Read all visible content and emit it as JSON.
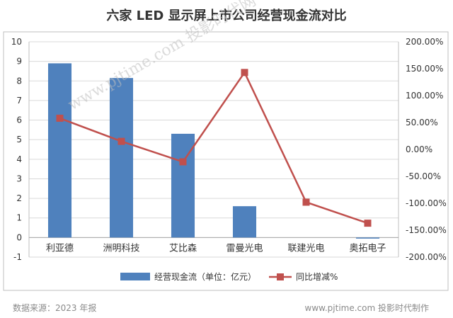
{
  "title": "六家 LED 显示屏上市公司经营现金流对比",
  "footer": {
    "source": "数据来源：2023 年报",
    "credit": "www.pjtime.com 投影时代制作"
  },
  "watermark": "www.pjtime.com 投影时代网",
  "chart_data": {
    "type": "bar",
    "categories": [
      "利亚德",
      "洲明科技",
      "艾比森",
      "雷曼光电",
      "联建光电",
      "奥拓电子"
    ],
    "series": [
      {
        "name": "经营现金流（单位：亿元）",
        "type": "bar",
        "axis": "left",
        "color": "#4f81bd",
        "values": [
          8.9,
          8.15,
          5.3,
          1.6,
          0.0,
          -0.05
        ]
      },
      {
        "name": "同比增减%",
        "type": "line",
        "axis": "right",
        "color": "#c0504d",
        "values": [
          58.0,
          15.0,
          -23.0,
          143.0,
          -98.0,
          -137.0
        ]
      }
    ],
    "y_left": {
      "ylim": [
        -1,
        10
      ],
      "ticks": [
        "10",
        "9",
        "8",
        "7",
        "6",
        "5",
        "4",
        "3",
        "2",
        "1",
        "0",
        "-1"
      ]
    },
    "y_right": {
      "ylim": [
        -200,
        200
      ],
      "ticks": [
        "200.00%",
        "150.00%",
        "100.00%",
        "50.00%",
        "0.00%",
        "-50.00%",
        "-100.00%",
        "-150.00%",
        "-200.00%"
      ]
    },
    "grid": true,
    "legend": "bottom"
  }
}
